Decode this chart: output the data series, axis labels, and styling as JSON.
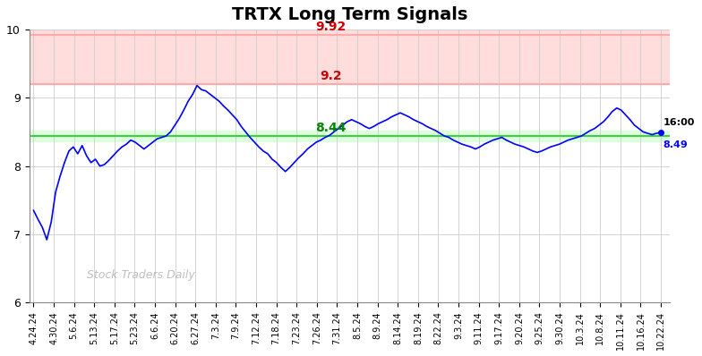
{
  "title": "TRTX Long Term Signals",
  "ylim": [
    6,
    10
  ],
  "yticks": [
    6,
    7,
    8,
    9,
    10
  ],
  "green_line": 8.44,
  "red_line1": 9.2,
  "red_line2": 9.92,
  "last_price": 8.49,
  "last_time": "16:00",
  "watermark": "Stock Traders Daily",
  "x_labels": [
    "4.24.24",
    "4.30.24",
    "5.6.24",
    "5.13.24",
    "5.17.24",
    "5.23.24",
    "6.6.24",
    "6.20.24",
    "6.27.24",
    "7.3.24",
    "7.9.24",
    "7.12.24",
    "7.18.24",
    "7.23.24",
    "7.26.24",
    "7.31.24",
    "8.5.24",
    "8.9.24",
    "8.14.24",
    "8.19.24",
    "8.22.24",
    "9.3.24",
    "9.11.24",
    "9.17.24",
    "9.20.24",
    "9.25.24",
    "9.30.24",
    "10.3.24",
    "10.8.24",
    "10.11.24",
    "10.16.24",
    "10.22.24"
  ],
  "y_values": [
    7.35,
    7.22,
    7.1,
    6.92,
    7.18,
    7.62,
    7.85,
    8.05,
    8.22,
    8.28,
    8.18,
    8.3,
    8.15,
    8.05,
    8.1,
    8.0,
    8.02,
    8.08,
    8.15,
    8.22,
    8.28,
    8.32,
    8.38,
    8.35,
    8.3,
    8.25,
    8.3,
    8.35,
    8.4,
    8.42,
    8.44,
    8.5,
    8.6,
    8.7,
    8.82,
    8.95,
    9.05,
    9.18,
    9.12,
    9.1,
    9.05,
    9.0,
    8.95,
    8.88,
    8.82,
    8.75,
    8.68,
    8.58,
    8.5,
    8.42,
    8.35,
    8.28,
    8.22,
    8.18,
    8.1,
    8.05,
    7.98,
    7.92,
    7.98,
    8.05,
    8.12,
    8.18,
    8.25,
    8.3,
    8.35,
    8.38,
    8.42,
    8.45,
    8.5,
    8.55,
    8.6,
    8.65,
    8.68,
    8.65,
    8.62,
    8.58,
    8.55,
    8.58,
    8.62,
    8.65,
    8.68,
    8.72,
    8.75,
    8.78,
    8.75,
    8.72,
    8.68,
    8.65,
    8.62,
    8.58,
    8.55,
    8.52,
    8.48,
    8.44,
    8.42,
    8.38,
    8.35,
    8.32,
    8.3,
    8.28,
    8.25,
    8.28,
    8.32,
    8.35,
    8.38,
    8.4,
    8.42,
    8.38,
    8.35,
    8.32,
    8.3,
    8.28,
    8.25,
    8.22,
    8.2,
    8.22,
    8.25,
    8.28,
    8.3,
    8.32,
    8.35,
    8.38,
    8.4,
    8.42,
    8.44,
    8.48,
    8.52,
    8.55,
    8.6,
    8.65,
    8.72,
    8.8,
    8.85,
    8.82,
    8.75,
    8.68,
    8.6,
    8.55,
    8.5,
    8.48,
    8.46,
    8.48,
    8.49
  ],
  "line_color": "blue",
  "bg_color": "white",
  "grid_color": "#cccccc",
  "red_fill_color": "#ffdddd",
  "red_line_color": "#ffaaaa",
  "green_fill_color": "#ddffdd",
  "green_line_color": "#44cc44",
  "annot_red_color": "#cc0000",
  "annot_green_color": "#008800"
}
